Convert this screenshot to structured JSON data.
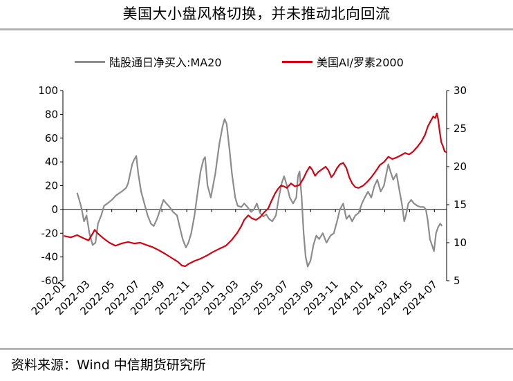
{
  "title": "美国大小盘风格切换，并未推动北向回流",
  "source": "资料来源：Wind  中信期货研究所",
  "chart_data": {
    "type": "line",
    "title": "美国大小盘风格切换，并未推动北向回流",
    "legend_position": "top",
    "grid": false,
    "x_tick_labels": [
      "2022-01",
      "2022-03",
      "2022-05",
      "2022-07",
      "2022-09",
      "2022-11",
      "2023-01",
      "2023-03",
      "2023-05",
      "2023-07",
      "2023-09",
      "2023-11",
      "2024-01",
      "2024-03",
      "2024-05",
      "2024-07"
    ],
    "x_range": [
      "2022-01-01",
      "2024-07-31"
    ],
    "y_left": {
      "lim": [
        -60,
        100
      ],
      "ticks": [
        -60,
        -40,
        -20,
        0,
        20,
        40,
        60,
        80,
        100
      ]
    },
    "y_right": {
      "lim": [
        5,
        30
      ],
      "ticks": [
        5,
        10,
        15,
        20,
        25,
        30
      ]
    },
    "series": [
      {
        "name": "陆股通日净买入:MA20",
        "axis": "left",
        "color": "#8c8c8c",
        "points": [
          [
            "2022-02-05",
            14
          ],
          [
            "2022-02-10",
            8
          ],
          [
            "2022-02-15",
            2
          ],
          [
            "2022-02-22",
            -10
          ],
          [
            "2022-02-28",
            -5
          ],
          [
            "2022-03-07",
            -20
          ],
          [
            "2022-03-15",
            -30
          ],
          [
            "2022-03-22",
            -28
          ],
          [
            "2022-03-28",
            -12
          ],
          [
            "2022-04-05",
            -5
          ],
          [
            "2022-04-12",
            3
          ],
          [
            "2022-04-20",
            5
          ],
          [
            "2022-05-01",
            8
          ],
          [
            "2022-05-12",
            12
          ],
          [
            "2022-05-25",
            15
          ],
          [
            "2022-06-05",
            18
          ],
          [
            "2022-06-10",
            22
          ],
          [
            "2022-06-15",
            30
          ],
          [
            "2022-06-20",
            38
          ],
          [
            "2022-06-25",
            42
          ],
          [
            "2022-06-30",
            45
          ],
          [
            "2022-07-05",
            30
          ],
          [
            "2022-07-12",
            15
          ],
          [
            "2022-07-20",
            5
          ],
          [
            "2022-07-28",
            -5
          ],
          [
            "2022-08-05",
            -12
          ],
          [
            "2022-08-12",
            -14
          ],
          [
            "2022-08-20",
            -8
          ],
          [
            "2022-08-28",
            0
          ],
          [
            "2022-09-05",
            8
          ],
          [
            "2022-09-12",
            5
          ],
          [
            "2022-09-20",
            2
          ],
          [
            "2022-09-28",
            -2
          ],
          [
            "2022-10-08",
            -5
          ],
          [
            "2022-10-15",
            -15
          ],
          [
            "2022-10-22",
            -25
          ],
          [
            "2022-10-30",
            -32
          ],
          [
            "2022-11-05",
            -28
          ],
          [
            "2022-11-12",
            -20
          ],
          [
            "2022-11-20",
            -5
          ],
          [
            "2022-11-28",
            15
          ],
          [
            "2022-12-05",
            32
          ],
          [
            "2022-12-12",
            42
          ],
          [
            "2022-12-16",
            44
          ],
          [
            "2022-12-22",
            20
          ],
          [
            "2022-12-30",
            10
          ],
          [
            "2023-01-10",
            30
          ],
          [
            "2023-01-20",
            55
          ],
          [
            "2023-01-28",
            70
          ],
          [
            "2023-02-02",
            76
          ],
          [
            "2023-02-07",
            72
          ],
          [
            "2023-02-14",
            50
          ],
          [
            "2023-02-20",
            30
          ],
          [
            "2023-02-28",
            10
          ],
          [
            "2023-03-06",
            3
          ],
          [
            "2023-03-15",
            2
          ],
          [
            "2023-03-22",
            5
          ],
          [
            "2023-03-30",
            2
          ],
          [
            "2023-04-08",
            -2
          ],
          [
            "2023-04-15",
            0
          ],
          [
            "2023-04-22",
            5
          ],
          [
            "2023-04-30",
            -3
          ],
          [
            "2023-05-08",
            -6
          ],
          [
            "2023-05-15",
            -4
          ],
          [
            "2023-05-22",
            -8
          ],
          [
            "2023-05-30",
            -10
          ],
          [
            "2023-06-08",
            -5
          ],
          [
            "2023-06-15",
            10
          ],
          [
            "2023-06-22",
            22
          ],
          [
            "2023-06-28",
            28
          ],
          [
            "2023-07-05",
            20
          ],
          [
            "2023-07-12",
            10
          ],
          [
            "2023-07-20",
            5
          ],
          [
            "2023-07-28",
            10
          ],
          [
            "2023-08-01",
            28
          ],
          [
            "2023-08-05",
            32
          ],
          [
            "2023-08-10",
            10
          ],
          [
            "2023-08-15",
            -20
          ],
          [
            "2023-08-20",
            -40
          ],
          [
            "2023-08-25",
            -48
          ],
          [
            "2023-09-01",
            -43
          ],
          [
            "2023-09-08",
            -30
          ],
          [
            "2023-09-15",
            -22
          ],
          [
            "2023-09-22",
            -25
          ],
          [
            "2023-10-01",
            -20
          ],
          [
            "2023-10-10",
            -28
          ],
          [
            "2023-10-20",
            -22
          ],
          [
            "2023-10-28",
            -20
          ],
          [
            "2023-11-05",
            -10
          ],
          [
            "2023-11-12",
            0
          ],
          [
            "2023-11-20",
            5
          ],
          [
            "2023-11-28",
            -8
          ],
          [
            "2023-12-05",
            -5
          ],
          [
            "2023-12-12",
            -10
          ],
          [
            "2023-12-20",
            -5
          ],
          [
            "2023-12-28",
            -3
          ],
          [
            "2024-01-05",
            5
          ],
          [
            "2024-01-12",
            10
          ],
          [
            "2024-01-20",
            15
          ],
          [
            "2024-01-28",
            10
          ],
          [
            "2024-02-05",
            20
          ],
          [
            "2024-02-12",
            25
          ],
          [
            "2024-02-20",
            15
          ],
          [
            "2024-02-28",
            20
          ],
          [
            "2024-03-05",
            30
          ],
          [
            "2024-03-10",
            38
          ],
          [
            "2024-03-15",
            32
          ],
          [
            "2024-03-22",
            25
          ],
          [
            "2024-03-30",
            30
          ],
          [
            "2024-04-05",
            18
          ],
          [
            "2024-04-12",
            5
          ],
          [
            "2024-04-18",
            -10
          ],
          [
            "2024-04-22",
            -5
          ],
          [
            "2024-04-28",
            5
          ],
          [
            "2024-05-05",
            8
          ],
          [
            "2024-05-12",
            5
          ],
          [
            "2024-05-20",
            3
          ],
          [
            "2024-05-28",
            2
          ],
          [
            "2024-06-05",
            2
          ],
          [
            "2024-06-10",
            0
          ],
          [
            "2024-06-15",
            -10
          ],
          [
            "2024-06-20",
            -25
          ],
          [
            "2024-06-25",
            -30
          ],
          [
            "2024-06-30",
            -35
          ],
          [
            "2024-07-05",
            -20
          ],
          [
            "2024-07-10",
            -15
          ],
          [
            "2024-07-15",
            -12
          ],
          [
            "2024-07-20",
            -14
          ]
        ]
      },
      {
        "name": "美国AI/罗素2000",
        "axis": "right",
        "color": "#d7000f",
        "points": [
          [
            "2022-01-03",
            10.9
          ],
          [
            "2022-01-20",
            10.7
          ],
          [
            "2022-02-05",
            11.0
          ],
          [
            "2022-02-20",
            10.6
          ],
          [
            "2022-03-05",
            10.3
          ],
          [
            "2022-03-15",
            11.2
          ],
          [
            "2022-03-20",
            11.7
          ],
          [
            "2022-03-28",
            11.2
          ],
          [
            "2022-04-10",
            10.6
          ],
          [
            "2022-04-25",
            10.0
          ],
          [
            "2022-05-10",
            9.6
          ],
          [
            "2022-05-25",
            9.9
          ],
          [
            "2022-06-10",
            10.1
          ],
          [
            "2022-06-25",
            9.9
          ],
          [
            "2022-07-10",
            10.0
          ],
          [
            "2022-07-25",
            9.7
          ],
          [
            "2022-08-10",
            9.4
          ],
          [
            "2022-08-25",
            9.0
          ],
          [
            "2022-09-10",
            8.5
          ],
          [
            "2022-09-25",
            8.0
          ],
          [
            "2022-10-10",
            7.5
          ],
          [
            "2022-10-20",
            7.0
          ],
          [
            "2022-10-28",
            6.9
          ],
          [
            "2022-11-05",
            7.2
          ],
          [
            "2022-11-20",
            7.6
          ],
          [
            "2022-12-05",
            7.9
          ],
          [
            "2022-12-20",
            8.3
          ],
          [
            "2023-01-05",
            8.8
          ],
          [
            "2023-01-20",
            9.2
          ],
          [
            "2023-02-05",
            9.6
          ],
          [
            "2023-02-20",
            10.4
          ],
          [
            "2023-03-05",
            11.3
          ],
          [
            "2023-03-15",
            12.2
          ],
          [
            "2023-03-22",
            13.0
          ],
          [
            "2023-04-01",
            13.6
          ],
          [
            "2023-04-10",
            13.2
          ],
          [
            "2023-04-20",
            13.0
          ],
          [
            "2023-05-01",
            13.4
          ],
          [
            "2023-05-10",
            14.0
          ],
          [
            "2023-05-20",
            14.5
          ],
          [
            "2023-05-28",
            15.5
          ],
          [
            "2023-06-05",
            16.4
          ],
          [
            "2023-06-12",
            17.0
          ],
          [
            "2023-06-20",
            17.5
          ],
          [
            "2023-06-28",
            17.4
          ],
          [
            "2023-07-05",
            17.2
          ],
          [
            "2023-07-15",
            17.8
          ],
          [
            "2023-07-25",
            17.4
          ],
          [
            "2023-08-05",
            17.6
          ],
          [
            "2023-08-15",
            18.5
          ],
          [
            "2023-08-22",
            19.3
          ],
          [
            "2023-08-30",
            20.0
          ],
          [
            "2023-09-05",
            19.6
          ],
          [
            "2023-09-12",
            18.8
          ],
          [
            "2023-09-20",
            19.3
          ],
          [
            "2023-09-28",
            19.6
          ],
          [
            "2023-10-08",
            20.0
          ],
          [
            "2023-10-15",
            19.5
          ],
          [
            "2023-10-22",
            18.6
          ],
          [
            "2023-10-28",
            19.0
          ],
          [
            "2023-11-05",
            19.8
          ],
          [
            "2023-11-12",
            20.3
          ],
          [
            "2023-11-20",
            20.5
          ],
          [
            "2023-11-28",
            19.8
          ],
          [
            "2023-12-05",
            18.6
          ],
          [
            "2023-12-12",
            17.8
          ],
          [
            "2023-12-20",
            17.3
          ],
          [
            "2023-12-28",
            17.2
          ],
          [
            "2024-01-08",
            17.5
          ],
          [
            "2024-01-18",
            18.0
          ],
          [
            "2024-01-28",
            18.6
          ],
          [
            "2024-02-08",
            19.4
          ],
          [
            "2024-02-18",
            20.2
          ],
          [
            "2024-02-28",
            20.6
          ],
          [
            "2024-03-10",
            21.3
          ],
          [
            "2024-03-20",
            21.0
          ],
          [
            "2024-03-30",
            21.2
          ],
          [
            "2024-04-10",
            21.5
          ],
          [
            "2024-04-20",
            21.8
          ],
          [
            "2024-04-30",
            21.6
          ],
          [
            "2024-05-10",
            22.0
          ],
          [
            "2024-05-20",
            22.6
          ],
          [
            "2024-05-30",
            23.3
          ],
          [
            "2024-06-08",
            24.2
          ],
          [
            "2024-06-15",
            25.3
          ],
          [
            "2024-06-22",
            26.0
          ],
          [
            "2024-06-28",
            26.6
          ],
          [
            "2024-07-03",
            26.4
          ],
          [
            "2024-07-07",
            27.0
          ],
          [
            "2024-07-10",
            26.3
          ],
          [
            "2024-07-14",
            24.6
          ],
          [
            "2024-07-18",
            23.2
          ],
          [
            "2024-07-22",
            22.7
          ],
          [
            "2024-07-26",
            22.0
          ],
          [
            "2024-07-31",
            21.9
          ]
        ]
      }
    ]
  }
}
